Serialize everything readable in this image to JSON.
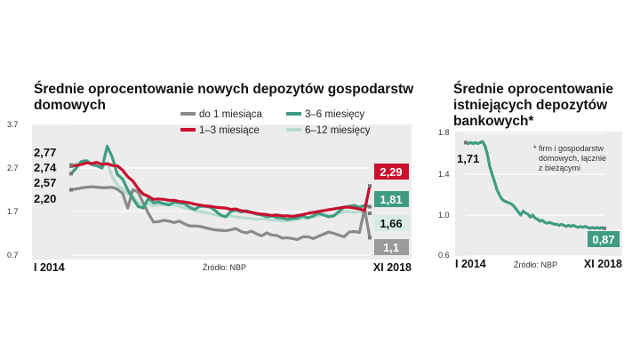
{
  "left_chart": {
    "title": "Średnie oprocentowanie nowych depozytów gospodarstw domowych",
    "source": "Źródło: NBP",
    "x_start": "I 2014",
    "x_end": "XI 2018",
    "y_ticks": [
      "3.7",
      "2.7",
      "1.7",
      "0.7"
    ],
    "start_labels": [
      "2,77",
      "2,74",
      "2,57",
      "2,20"
    ],
    "end_labels": [
      "2,29",
      "1,81",
      "1,66",
      "1,1"
    ],
    "legend": [
      "do 1 miesiąca",
      "3–6 miesięcy",
      "1–3 miesiące",
      "6–12 miesięcy"
    ]
  },
  "right_chart": {
    "title": "Średnie oprocentowanie istniejących depozytów bankowych*",
    "note": "* firm i gospodarstw domowych, łącznie z bieżącymi",
    "x_start": "I 2014",
    "x_end": "XI 2018",
    "y_ticks": [
      "1.8",
      "1.4",
      "1.0",
      "0.6"
    ],
    "start_label": "1,71",
    "end_label": "0,87"
  },
  "colors": {
    "do1": "#8a8a8a",
    "m1_3": "#c8102e",
    "m3_6": "#3f9c82",
    "m6_12": "#b7dccf",
    "panel": "#ececec"
  },
  "chart_data": [
    {
      "type": "line",
      "title": "Średnie oprocentowanie nowych depozytów gospodarstw domowych",
      "xlabel": "",
      "ylabel": "",
      "x_range": [
        "I 2014",
        "XI 2018"
      ],
      "ylim": [
        0.7,
        3.7
      ],
      "y_ticks": [
        3.7,
        2.7,
        1.7,
        0.7
      ],
      "grid": true,
      "legend": "top",
      "series": [
        {
          "name": "do 1 miesiąca",
          "color": "#8a8a8a",
          "values": [
            2.2,
            2.22,
            2.24,
            2.26,
            2.27,
            2.26,
            2.25,
            2.25,
            2.26,
            2.21,
            2.12,
            1.78,
            2.2,
            2.15,
            1.9,
            1.66,
            1.46,
            1.47,
            1.5,
            1.48,
            1.45,
            1.48,
            1.42,
            1.37,
            1.37,
            1.36,
            1.33,
            1.3,
            1.28,
            1.27,
            1.26,
            1.28,
            1.31,
            1.24,
            1.21,
            1.25,
            1.19,
            1.14,
            1.21,
            1.16,
            1.15,
            1.09,
            1.1,
            1.08,
            1.06,
            1.12,
            1.12,
            1.08,
            1.13,
            1.18,
            1.23,
            1.2,
            1.16,
            1.12,
            1.23,
            1.24,
            1.22,
            1.76,
            1.1
          ]
        },
        {
          "name": "1–3 miesiące",
          "color": "#c8102e",
          "values": [
            2.74,
            2.76,
            2.78,
            2.82,
            2.8,
            2.83,
            2.78,
            2.8,
            2.76,
            2.75,
            2.65,
            2.5,
            2.4,
            2.23,
            2.1,
            2.05,
            1.98,
            1.99,
            1.98,
            1.96,
            1.96,
            1.93,
            1.92,
            1.9,
            1.87,
            1.85,
            1.83,
            1.82,
            1.8,
            1.79,
            1.78,
            1.75,
            1.76,
            1.72,
            1.7,
            1.68,
            1.66,
            1.64,
            1.63,
            1.61,
            1.62,
            1.6,
            1.6,
            1.59,
            1.61,
            1.63,
            1.66,
            1.68,
            1.7,
            1.72,
            1.74,
            1.76,
            1.78,
            1.8,
            1.8,
            1.78,
            1.76,
            1.72,
            2.29
          ]
        },
        {
          "name": "3–6 miesięcy",
          "color": "#3f9c82",
          "values": [
            2.57,
            2.7,
            2.85,
            2.87,
            2.78,
            2.75,
            2.7,
            3.2,
            2.95,
            2.55,
            2.45,
            2.2,
            2.0,
            1.82,
            1.78,
            2.0,
            1.9,
            1.92,
            1.88,
            1.85,
            1.92,
            1.9,
            1.88,
            1.8,
            1.75,
            1.82,
            1.82,
            1.8,
            1.72,
            1.62,
            1.58,
            1.7,
            1.73,
            1.69,
            1.72,
            1.68,
            1.64,
            1.62,
            1.58,
            1.6,
            1.56,
            1.55,
            1.52,
            1.54,
            1.55,
            1.6,
            1.55,
            1.6,
            1.66,
            1.62,
            1.58,
            1.6,
            1.7,
            1.8,
            1.82,
            1.84,
            1.8,
            1.84,
            1.81
          ]
        },
        {
          "name": "6–12 miesięcy",
          "color": "#b7dccf",
          "values": [
            2.77,
            2.8,
            2.84,
            2.82,
            2.8,
            2.78,
            2.7,
            2.82,
            2.5,
            2.3,
            2.22,
            2.1,
            2.05,
            1.9,
            1.85,
            1.88,
            1.83,
            1.85,
            1.86,
            1.9,
            1.85,
            1.82,
            1.78,
            1.76,
            1.72,
            1.7,
            1.68,
            1.66,
            1.62,
            1.6,
            1.58,
            1.6,
            1.58,
            1.56,
            1.55,
            1.54,
            1.52,
            1.53,
            1.52,
            1.5,
            1.5,
            1.48,
            1.49,
            1.5,
            1.52,
            1.54,
            1.56,
            1.58,
            1.6,
            1.64,
            1.62,
            1.6,
            1.66,
            1.7,
            1.7,
            1.68,
            1.7,
            1.68,
            1.66
          ]
        }
      ],
      "end_values": {
        "1–3 miesiące": 2.29,
        "3–6 miesięcy": 1.81,
        "6–12 miesięcy": 1.66,
        "do 1 miesiąca": 1.1
      },
      "start_values": {
        "6–12 miesięcy": 2.77,
        "1–3 miesiące": 2.74,
        "3–6 miesięcy": 2.57,
        "do 1 miesiąca": 2.2
      }
    },
    {
      "type": "line",
      "title": "Średnie oprocentowanie istniejących depozytów bankowych*",
      "xlabel": "",
      "ylabel": "",
      "x_range": [
        "I 2014",
        "XI 2018"
      ],
      "ylim": [
        0.6,
        1.8
      ],
      "y_ticks": [
        1.8,
        1.4,
        1.0,
        0.6
      ],
      "grid": true,
      "series": [
        {
          "name": "",
          "color": "#3f9c82",
          "values": [
            1.71,
            1.7,
            1.71,
            1.7,
            1.71,
            1.7,
            1.71,
            1.72,
            1.68,
            1.6,
            1.48,
            1.4,
            1.33,
            1.25,
            1.2,
            1.16,
            1.14,
            1.13,
            1.12,
            1.11,
            1.09,
            1.06,
            1.03,
            1.0,
            1.04,
            1.02,
            1.01,
            0.98,
            1.0,
            0.97,
            0.96,
            0.94,
            0.95,
            0.93,
            0.92,
            0.93,
            0.92,
            0.91,
            0.91,
            0.9,
            0.91,
            0.9,
            0.89,
            0.9,
            0.89,
            0.9,
            0.89,
            0.88,
            0.89,
            0.88,
            0.89,
            0.88,
            0.87,
            0.88,
            0.87,
            0.88,
            0.87,
            0.88,
            0.87
          ]
        }
      ],
      "start_value": 1.71,
      "end_value": 0.87
    }
  ]
}
